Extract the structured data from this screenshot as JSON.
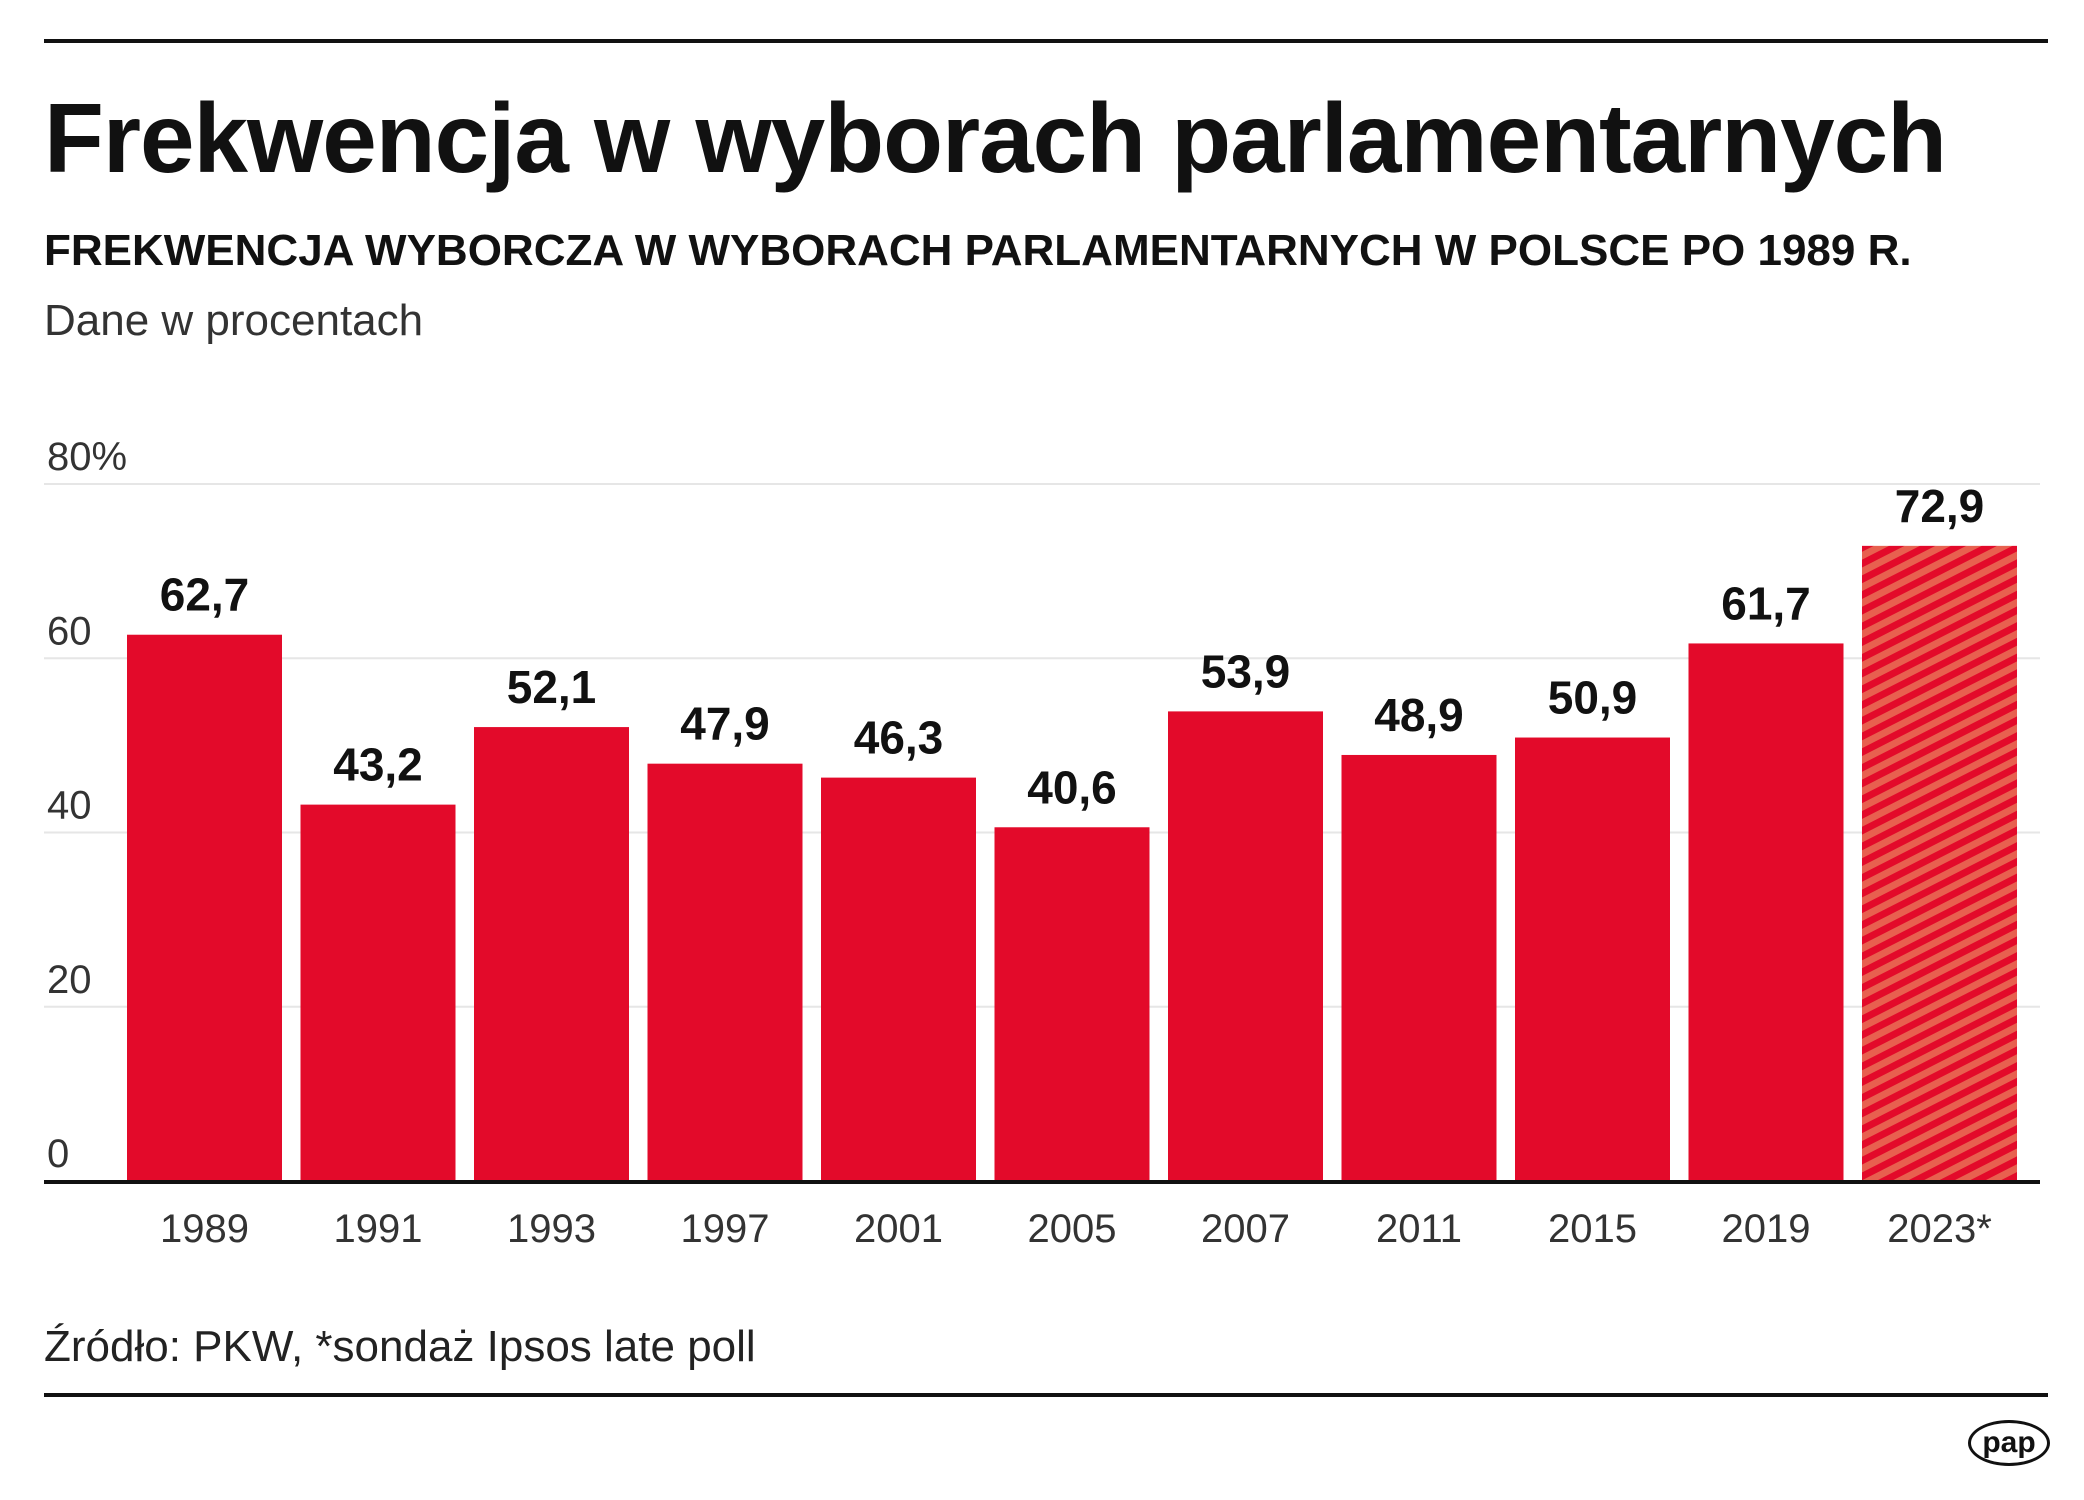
{
  "title": "Frekwencja w wyborach parlamentarnych",
  "subtitle": "FREKWENCJA WYBORCZA W WYBORACH PARLAMENTARNYCH W POLSCE PO 1989 R.",
  "unit_note": "Dane w procentach",
  "source": "Źródło: PKW, *sondaż Ipsos late poll",
  "logo": "pap",
  "colors": {
    "bar": "#e30a2a",
    "hatch_light": "#e8604f",
    "grid": "#e6e6e6"
  },
  "chart_data": {
    "type": "bar",
    "categories": [
      "1989",
      "1991",
      "1993",
      "1997",
      "2001",
      "2005",
      "2007",
      "2011",
      "2015",
      "2019",
      "2023*"
    ],
    "values": [
      62.7,
      43.2,
      52.1,
      47.9,
      46.3,
      40.6,
      53.9,
      48.9,
      50.9,
      61.7,
      72.9
    ],
    "data_labels": [
      "62,7",
      "43,2",
      "52,1",
      "47,9",
      "46,3",
      "40,6",
      "53,9",
      "48,9",
      "50,9",
      "61,7",
      "72,9"
    ],
    "hatched": [
      false,
      false,
      false,
      false,
      false,
      false,
      false,
      false,
      false,
      false,
      true
    ],
    "ylim": [
      0,
      80
    ],
    "yticks": [
      0,
      20,
      40,
      60,
      80
    ],
    "ytick_labels": [
      "0",
      "20",
      "40",
      "60",
      "80%"
    ],
    "grid": true
  }
}
